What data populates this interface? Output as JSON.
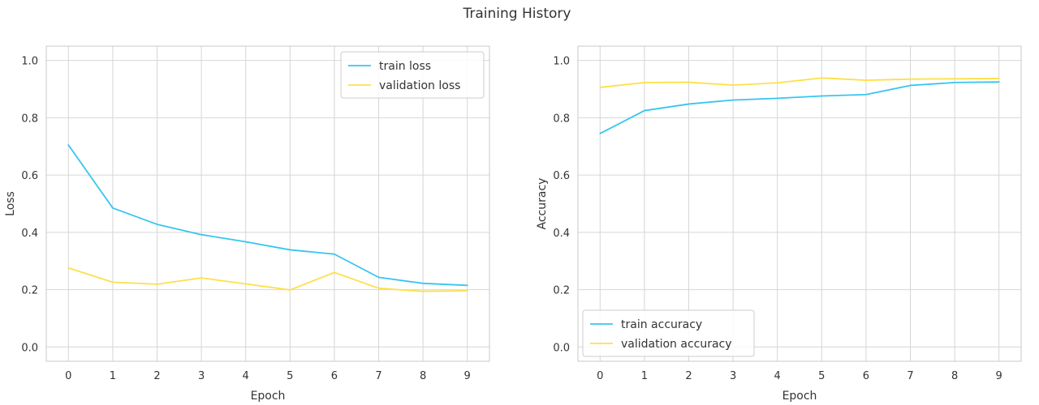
{
  "title": "Training History",
  "chart_data": [
    {
      "type": "line",
      "xlabel": "Epoch",
      "ylabel": "Loss",
      "x": [
        0,
        1,
        2,
        3,
        4,
        5,
        6,
        7,
        8,
        9
      ],
      "xlim": [
        -0.5,
        9.5
      ],
      "ylim": [
        -0.05,
        1.05
      ],
      "yticks": [
        0.0,
        0.2,
        0.4,
        0.6,
        0.8,
        1.0
      ],
      "grid": true,
      "legend_position": "top-right",
      "series": [
        {
          "name": "train loss",
          "color": "#36c5f0",
          "values": [
            0.705,
            0.485,
            0.428,
            0.392,
            0.367,
            0.339,
            0.324,
            0.243,
            0.222,
            0.215
          ]
        },
        {
          "name": "validation loss",
          "color": "#fde047",
          "values": [
            0.276,
            0.226,
            0.219,
            0.241,
            0.22,
            0.199,
            0.26,
            0.205,
            0.194,
            0.196
          ]
        }
      ]
    },
    {
      "type": "line",
      "xlabel": "Epoch",
      "ylabel": "Accuracy",
      "x": [
        0,
        1,
        2,
        3,
        4,
        5,
        6,
        7,
        8,
        9
      ],
      "xlim": [
        -0.5,
        9.5
      ],
      "ylim": [
        -0.05,
        1.05
      ],
      "yticks": [
        0.0,
        0.2,
        0.4,
        0.6,
        0.8,
        1.0
      ],
      "grid": true,
      "legend_position": "bottom-left",
      "series": [
        {
          "name": "train accuracy",
          "color": "#36c5f0",
          "values": [
            0.745,
            0.825,
            0.848,
            0.862,
            0.868,
            0.876,
            0.881,
            0.913,
            0.923,
            0.925
          ]
        },
        {
          "name": "validation accuracy",
          "color": "#fde047",
          "values": [
            0.906,
            0.923,
            0.924,
            0.914,
            0.922,
            0.939,
            0.931,
            0.935,
            0.936,
            0.937
          ]
        }
      ]
    }
  ]
}
